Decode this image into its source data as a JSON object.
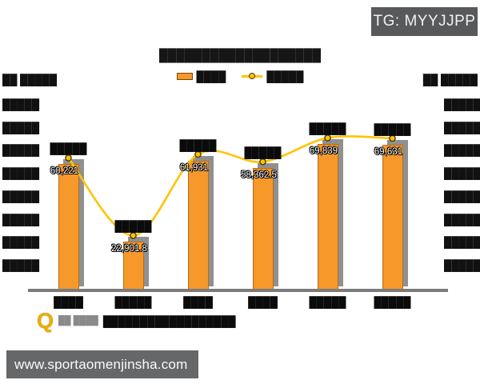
{
  "badge": {
    "label": "TG: MYYJJPP"
  },
  "header": {
    "title_display": "███████████████████",
    "title_likely_reading": "外卖APP行业用户行为总指数",
    "title_note": "title rendered as near-solid dark text in source, barely legible"
  },
  "y_axis": {
    "left_header": "██ █████",
    "right_header": "██ █████",
    "left_ticks": [
      "█████",
      "█████",
      "█████",
      "█████",
      "█████",
      "█████",
      "█████",
      "█████"
    ],
    "right_ticks": [
      "█████",
      "█████",
      "█████",
      "█████",
      "█████",
      "█████",
      "█████",
      "█████"
    ],
    "ticks_note": "all axis tick labels are solid black blocks (illegible) in source"
  },
  "chart_data": {
    "type": "combo-bar-line",
    "title": "外卖APP行业用户行为总指数 (approx reading)",
    "categories_display": [
      "████",
      "█████",
      "████",
      "████",
      "█████",
      "█████"
    ],
    "categories_note": "x category labels are solid black blocks (illegible) in source",
    "series": [
      {
        "name_display": "████",
        "type": "bar",
        "color": "#F7982B",
        "values": [
          60221,
          22901.8,
          61931,
          58362.5,
          69839,
          69631
        ],
        "data_labels": [
          "60,221",
          "22,901.8",
          "61,931",
          "58,362.5",
          "69,839",
          "69,631"
        ]
      },
      {
        "name_display": "█████",
        "type": "line",
        "color": "#FFC400",
        "values": [
          60221,
          22901.8,
          61931,
          58362.5,
          69839,
          69631
        ],
        "data_labels": [
          "█████",
          "█████",
          "█████",
          "█████",
          "█████",
          "█████"
        ],
        "note": "yellow line passes just above each bar top; its data labels are black blocks (illegible)"
      }
    ],
    "ylim": [
      0,
      95000
    ],
    "ylim_note": "estimated; axis tick values illegible",
    "legend_position": "top",
    "grid": false
  },
  "source_row": {
    "logo": "Q",
    "pre_block": "██ ████",
    "text_block": "██████████████████"
  },
  "banner": {
    "url_text": "www.sportaomenjinsha.com"
  },
  "colors": {
    "bar": "#F7982B",
    "bar_shadow": "#909090",
    "line": "#FFC400",
    "axis": "#7b7b7b",
    "badge_bg": "#58595B",
    "banner_bg": "#666768",
    "redacted_text": "#111111"
  }
}
